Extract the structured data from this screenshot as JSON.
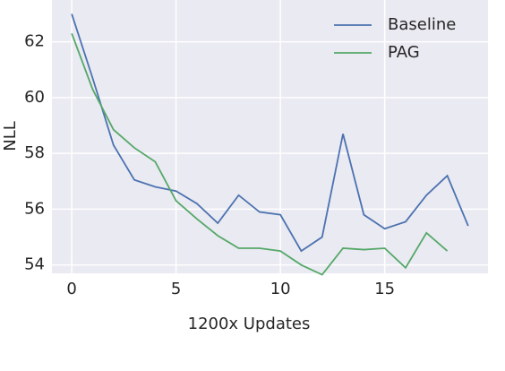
{
  "chart_data": {
    "type": "line",
    "x_label": "1200x Updates",
    "y_label": "NLL",
    "x": [
      0,
      1,
      2,
      3,
      4,
      5,
      6,
      7,
      8,
      9,
      10,
      11,
      12,
      13,
      14,
      15,
      16,
      17,
      18,
      19
    ],
    "series": [
      {
        "name": "Baseline",
        "color": "#4c72b0",
        "values": [
          63.0,
          60.7,
          58.3,
          57.05,
          56.8,
          56.65,
          56.2,
          55.5,
          56.5,
          55.9,
          55.8,
          54.5,
          55.0,
          58.7,
          55.8,
          55.3,
          55.55,
          56.5,
          57.2,
          55.4
        ]
      },
      {
        "name": "PAG",
        "color": "#55a868",
        "values": [
          62.3,
          60.3,
          58.85,
          58.2,
          57.7,
          56.3,
          55.65,
          55.05,
          54.6,
          54.6,
          54.5,
          54.0,
          53.65,
          54.6,
          54.55,
          54.6,
          53.9,
          55.15,
          54.5,
          null
        ]
      }
    ],
    "xlim": [
      -0.95,
      19.95
    ],
    "ylim": [
      53.7,
      63.5
    ],
    "xticks": [
      0,
      5,
      10,
      15
    ],
    "yticks": [
      54,
      56,
      58,
      60,
      62
    ],
    "grid": true,
    "legend": "upper right"
  }
}
